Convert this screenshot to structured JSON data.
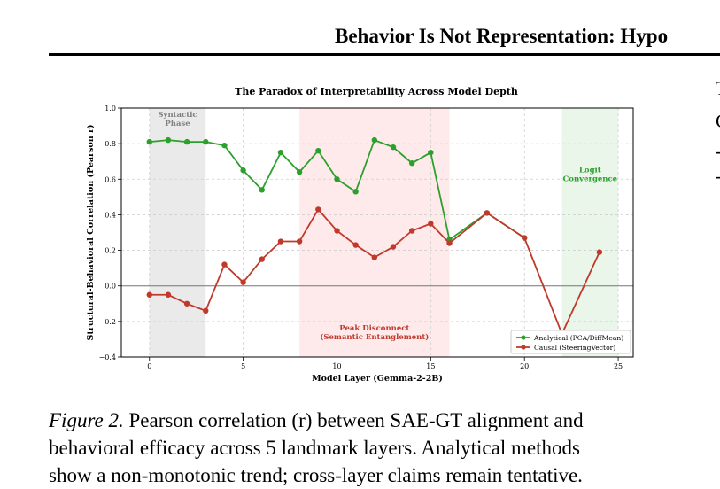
{
  "header": {
    "running_title": "Behavior Is Not Representation: Hypo"
  },
  "right_column": {
    "fragments": [
      "T",
      "C",
      "-",
      "-"
    ]
  },
  "figure": {
    "chart_data": {
      "type": "line",
      "title": "The Paradox of Interpretability Across Model Depth",
      "xlabel": "Model Layer (Gemma-2-2B)",
      "ylabel": "Structural-Behavioral Correlation (Pearson r)",
      "xlim": [
        -1.5,
        25.8
      ],
      "ylim": [
        -0.4,
        1.0
      ],
      "xticks": [
        0,
        5,
        10,
        15,
        20,
        25
      ],
      "yticks": [
        -0.4,
        -0.2,
        0.0,
        0.2,
        0.4,
        0.6,
        0.8,
        1.0
      ],
      "ytick_labels": [
        "−0.4",
        "−0.2",
        "0.0",
        "0.2",
        "0.4",
        "0.6",
        "0.8",
        "1.0"
      ],
      "grid": true,
      "legend_position": "bottom-right",
      "series": [
        {
          "name": "Analytical (PCA/DiffMean)",
          "color": "#2ca02c",
          "x": [
            0,
            1,
            2,
            3,
            4,
            5,
            6,
            7,
            8,
            9,
            10,
            11,
            12,
            13,
            14,
            15,
            16,
            18,
            20
          ],
          "y": [
            0.81,
            0.82,
            0.81,
            0.81,
            0.79,
            0.65,
            0.54,
            0.75,
            0.64,
            0.76,
            0.6,
            0.53,
            0.82,
            0.78,
            0.69,
            0.75,
            0.26,
            0.41,
            0.27
          ]
        },
        {
          "name": "Causal (SteeringVector)",
          "color": "#c0392b",
          "x": [
            0,
            1,
            2,
            3,
            4,
            5,
            6,
            7,
            8,
            9,
            10,
            11,
            12,
            13,
            14,
            15,
            16,
            18,
            20,
            22,
            24
          ],
          "y": [
            -0.05,
            -0.05,
            -0.1,
            -0.14,
            0.12,
            0.02,
            0.15,
            0.25,
            0.25,
            0.43,
            0.31,
            0.23,
            0.16,
            0.22,
            0.31,
            0.35,
            0.24,
            0.41,
            0.27,
            -0.27,
            0.19
          ]
        }
      ],
      "regions": [
        {
          "label_lines": [
            "Syntactic",
            "Phase"
          ],
          "x_start": 0,
          "x_end": 3,
          "color": "#d9d9d9",
          "label_color": "#808080",
          "label_y": 0.95
        },
        {
          "label_lines": [
            "Peak Disconnect",
            "(Semantic Entanglement)"
          ],
          "x_start": 8,
          "x_end": 16,
          "color": "#fdd9d9",
          "label_color": "#c0392b",
          "label_y": -0.25
        },
        {
          "label_lines": [
            "Logit",
            "Convergence"
          ],
          "x_start": 22,
          "x_end": 25,
          "color": "#d8eed8",
          "label_color": "#2ca02c",
          "label_y": 0.64
        }
      ]
    }
  },
  "caption": {
    "label": "Figure 2.",
    "lines": [
      " Pearson correlation (r) between SAE-GT alignment and",
      "behavioral efficacy across 5 landmark layers. Analytical methods",
      "show a non-monotonic trend; cross-layer claims remain tentative."
    ]
  }
}
